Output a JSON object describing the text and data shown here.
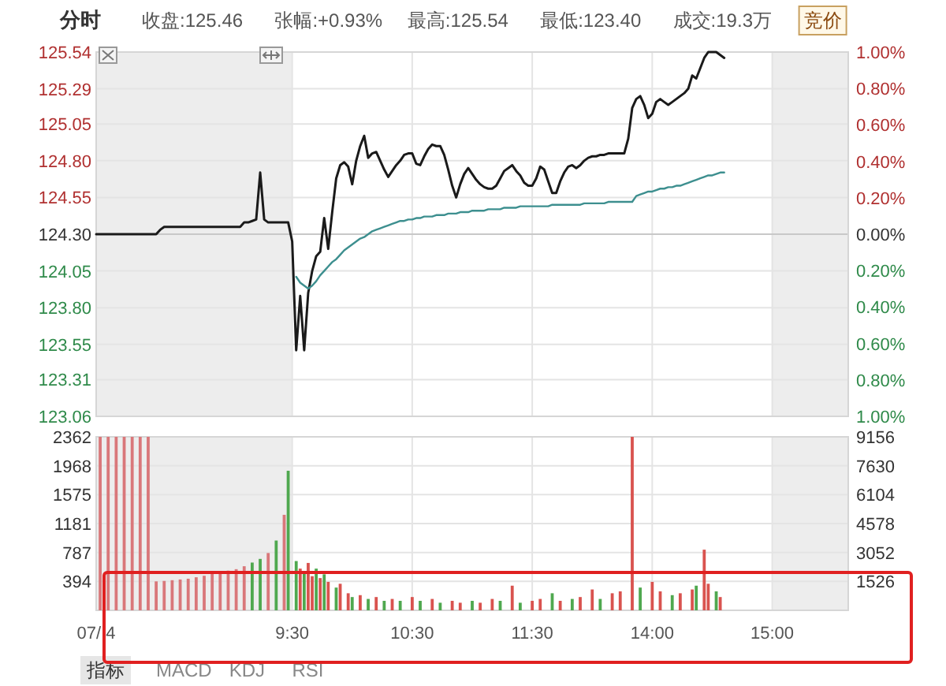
{
  "chart_data": [
    {
      "type": "line",
      "title": "分时",
      "annotations": [
        "收盘:125.46",
        "张幅:+0.93%",
        "最高:125.54",
        "最低:123.40",
        "成交:19.3万",
        "竞价"
      ],
      "categories": [
        "07/ 4",
        null,
        null,
        null,
        null,
        null,
        null,
        null,
        null,
        null,
        null,
        null,
        null,
        null,
        null,
        null,
        null,
        null,
        null,
        null,
        null,
        null,
        null,
        null,
        null,
        null,
        null,
        null,
        null,
        null,
        null,
        null,
        null,
        null,
        null,
        null,
        null,
        null,
        null,
        null,
        null,
        null,
        null,
        null,
        null,
        null,
        null,
        null,
        null,
        "9:30",
        null,
        null,
        null,
        null,
        null,
        null,
        null,
        null,
        null,
        null,
        null,
        null,
        null,
        null,
        null,
        null,
        null,
        null,
        null,
        null,
        null,
        null,
        null,
        null,
        null,
        null,
        null,
        null,
        null,
        "10:30",
        null,
        null,
        null,
        null,
        null,
        null,
        null,
        null,
        null,
        null,
        null,
        null,
        null,
        null,
        null,
        null,
        null,
        null,
        null,
        null,
        null,
        null,
        null,
        null,
        null,
        null,
        null,
        null,
        null,
        "11:30",
        null,
        null,
        null,
        null,
        null,
        null,
        null,
        null,
        null,
        null,
        null,
        null,
        null,
        null,
        null,
        null,
        null,
        null,
        null,
        null,
        null,
        null,
        null,
        null,
        null,
        null,
        null,
        null,
        null,
        "14:00",
        null,
        null,
        null,
        null,
        null,
        null,
        null,
        null,
        null,
        null,
        null,
        null,
        null,
        null,
        null,
        null,
        null,
        null,
        null,
        null,
        null,
        null,
        null,
        null,
        null,
        null,
        null,
        null,
        null,
        "15:00",
        null,
        null,
        null,
        null,
        null,
        null,
        null,
        null,
        null,
        null,
        null,
        null,
        null,
        null,
        null,
        null,
        null,
        null,
        null
      ],
      "ylim": [
        123.06,
        125.54
      ],
      "yticks": [
        123.06,
        123.31,
        123.55,
        {
          "value": 123.8,
          "label": "123.80"
        },
        124.05,
        {
          "value": 124.3,
          "label": "124.30"
        },
        124.55,
        {
          "value": 124.8,
          "label": "124.80"
        },
        125.05,
        125.29,
        125.54
      ],
      "y2lim": [
        -1,
        1
      ],
      "y2ticks": [
        {
          "value": -1,
          "label": "1.00%"
        },
        {
          "value": -0.8,
          "label": "0.80%"
        },
        {
          "value": -0.6,
          "label": "0.60%"
        },
        {
          "value": -0.4,
          "label": "0.40%"
        },
        {
          "value": -0.2,
          "label": "0.20%"
        },
        {
          "value": 0,
          "label": "0.00%"
        },
        {
          "value": 0.2,
          "label": "0.20%"
        },
        {
          "value": 0.4,
          "label": "0.40%"
        },
        {
          "value": 0.6,
          "label": "0.60%"
        },
        {
          "value": 0.8,
          "label": "0.80%"
        },
        {
          "value": 1,
          "label": "1.00%"
        }
      ],
      "tick_labels": "y",
      "grid": true,
      "bands": [
        {
          "axis": "x",
          "from": "07/ 4",
          "to": "9:30",
          "color": "#ededed"
        }
      ],
      "ref_lines": [
        {
          "axis": "y",
          "value": 124.3,
          "color": "#c8c8c8"
        }
      ],
      "series": [
        {
          "color": "#1a1a1a",
          "values": [
            124.3,
            124.3,
            124.3,
            124.3,
            124.3,
            124.3,
            124.3,
            124.3,
            124.3,
            124.3,
            124.3,
            124.3,
            124.3,
            124.3,
            124.3,
            124.3,
            124.33,
            124.35,
            124.35,
            124.35,
            124.35,
            124.35,
            124.35,
            124.35,
            124.35,
            124.35,
            124.35,
            124.35,
            124.35,
            124.35,
            124.35,
            124.35,
            124.35,
            124.35,
            124.35,
            124.35,
            124.35,
            124.38,
            124.38,
            124.39,
            124.4,
            124.72,
            124.4,
            124.38,
            124.38,
            124.38,
            124.38,
            124.38,
            124.38,
            124.25,
            123.51,
            123.88,
            123.51,
            123.9,
            124.05,
            124.15,
            124.18,
            124.41,
            124.2,
            124.45,
            124.68,
            124.77,
            124.79,
            124.76,
            124.64,
            124.8,
            124.9,
            124.97,
            124.82,
            124.85,
            124.86,
            124.8,
            124.74,
            124.69,
            124.73,
            124.77,
            124.8,
            124.84,
            124.85,
            124.85,
            124.78,
            124.77,
            124.83,
            124.88,
            124.91,
            124.9,
            124.9,
            124.84,
            124.74,
            124.63,
            124.55,
            124.64,
            124.71,
            124.75,
            124.71,
            124.67,
            124.64,
            124.62,
            124.61,
            124.61,
            124.63,
            124.68,
            124.73,
            124.75,
            124.77,
            124.73,
            124.7,
            124.65,
            124.63,
            124.63,
            124.68,
            124.76,
            124.74,
            124.66,
            124.58,
            124.58,
            124.66,
            124.72,
            124.76,
            124.77,
            124.75,
            124.77,
            124.8,
            124.82,
            124.83,
            124.83,
            124.84,
            124.84,
            124.85,
            124.85,
            124.85,
            124.85,
            124.85,
            124.95,
            125.16,
            125.22,
            125.24,
            125.18,
            125.09,
            125.12,
            125.2,
            125.22,
            125.2,
            125.18,
            125.2,
            125.22,
            125.24,
            125.26,
            125.29,
            125.38,
            125.36,
            125.43,
            125.5,
            125.54,
            125.54,
            125.54,
            125.52,
            125.5,
            null,
            null,
            null,
            null,
            null,
            null,
            null,
            null,
            null,
            null,
            null,
            null,
            null,
            null,
            null,
            null,
            null,
            null,
            null,
            null,
            null,
            null,
            null,
            null,
            null,
            null,
            null,
            null,
            null,
            null,
            null
          ]
        },
        {
          "color": "#3d8f8f",
          "values": [
            null,
            null,
            null,
            null,
            null,
            null,
            null,
            null,
            null,
            null,
            null,
            null,
            null,
            null,
            null,
            null,
            null,
            null,
            null,
            null,
            null,
            null,
            null,
            null,
            null,
            null,
            null,
            null,
            null,
            null,
            null,
            null,
            null,
            null,
            null,
            null,
            null,
            null,
            null,
            null,
            null,
            null,
            null,
            null,
            null,
            null,
            null,
            null,
            null,
            null,
            124.01,
            123.97,
            123.95,
            123.93,
            123.95,
            123.98,
            124.02,
            124.05,
            124.08,
            124.11,
            124.13,
            124.16,
            124.19,
            124.21,
            124.23,
            124.25,
            124.27,
            124.28,
            124.3,
            124.32,
            124.33,
            124.34,
            124.35,
            124.36,
            124.37,
            124.38,
            124.39,
            124.39,
            124.4,
            124.4,
            124.41,
            124.41,
            124.42,
            124.42,
            124.42,
            124.43,
            124.43,
            124.43,
            124.44,
            124.44,
            124.44,
            124.45,
            124.45,
            124.45,
            124.46,
            124.46,
            124.46,
            124.46,
            124.47,
            124.47,
            124.47,
            124.47,
            124.48,
            124.48,
            124.48,
            124.48,
            124.49,
            124.49,
            124.49,
            124.49,
            124.49,
            124.49,
            124.49,
            124.49,
            124.5,
            124.5,
            124.5,
            124.5,
            124.5,
            124.5,
            124.5,
            124.5,
            124.51,
            124.51,
            124.51,
            124.51,
            124.51,
            124.51,
            124.52,
            124.52,
            124.52,
            124.52,
            124.52,
            124.52,
            124.52,
            124.56,
            124.57,
            124.58,
            124.59,
            124.59,
            124.6,
            124.61,
            124.61,
            124.62,
            124.62,
            124.63,
            124.63,
            124.64,
            124.65,
            124.66,
            124.67,
            124.68,
            124.69,
            124.7,
            124.7,
            124.71,
            124.72,
            124.72,
            null,
            null,
            null,
            null,
            null,
            null,
            null,
            null,
            null,
            null,
            null,
            null,
            null,
            null,
            null,
            null,
            null,
            null,
            null,
            null,
            null,
            null,
            null,
            null,
            null,
            null,
            null,
            null,
            null,
            null,
            null
          ]
        }
      ]
    },
    {
      "type": "bar",
      "annotations": [
        "指标",
        "MACD",
        "KDJ",
        "RSI"
      ],
      "categories": [
        "07/ 4",
        null,
        null,
        null,
        null,
        null,
        null,
        null,
        null,
        null,
        null,
        null,
        null,
        null,
        null,
        null,
        null,
        null,
        null,
        null,
        null,
        null,
        null,
        null,
        null,
        null,
        null,
        null,
        null,
        null,
        null,
        null,
        null,
        null,
        null,
        null,
        null,
        null,
        null,
        null,
        null,
        null,
        null,
        null,
        null,
        null,
        null,
        null,
        null,
        "9:30",
        null,
        null,
        null,
        null,
        null,
        null,
        null,
        null,
        null,
        null,
        null,
        null,
        null,
        null,
        null,
        null,
        null,
        null,
        null,
        null,
        null,
        null,
        null,
        null,
        null,
        null,
        null,
        null,
        null,
        "10:30",
        null,
        null,
        null,
        null,
        null,
        null,
        null,
        null,
        null,
        null,
        null,
        null,
        null,
        null,
        null,
        null,
        null,
        null,
        null,
        null,
        null,
        null,
        null,
        null,
        null,
        null,
        null,
        null,
        null,
        "11:30",
        null,
        null,
        null,
        null,
        null,
        null,
        null,
        null,
        null,
        null,
        null,
        null,
        null,
        null,
        null,
        null,
        null,
        null,
        null,
        null,
        null,
        null,
        null,
        null,
        null,
        null,
        null,
        null,
        null,
        "14:00",
        null,
        null,
        null,
        null,
        null,
        null,
        null,
        null,
        null,
        null,
        null,
        null,
        null,
        null,
        null,
        null,
        null,
        null,
        null,
        null,
        null,
        null,
        null,
        null,
        null,
        null,
        null,
        null,
        null,
        "15:00",
        null,
        null,
        null,
        null,
        null,
        null,
        null,
        null,
        null,
        null,
        null,
        null,
        null,
        null,
        null,
        null,
        null,
        null,
        null
      ],
      "ylim": [
        0,
        2362
      ],
      "yticks": [
        394,
        787,
        1181,
        1575,
        1968,
        2362
      ],
      "y2lim": [
        0,
        9156
      ],
      "y2ticks": [
        1526,
        3052,
        4578,
        6104,
        7630,
        9156
      ],
      "grid": true,
      "bands": [
        {
          "axis": "x",
          "from": "07/ 4",
          "to": "9:30",
          "color": "#ededed"
        }
      ],
      "series": [
        {
          "axis": "y",
          "color": "#d9777a",
          "values": [
            null,
            2362,
            null,
            2362,
            null,
            2362,
            null,
            2362,
            null,
            2362,
            null,
            2362,
            null,
            2362,
            null,
            394,
            null,
            400,
            null,
            410,
            null,
            420,
            null,
            430,
            null,
            450,
            null,
            470,
            null,
            500,
            null,
            520,
            null,
            540,
            null,
            560,
            null,
            600,
            null,
            null,
            null,
            null,
            null,
            780,
            null,
            null,
            null,
            1300,
            null,
            null,
            null,
            null,
            null,
            null,
            null,
            null,
            null,
            null,
            null,
            null,
            null,
            null,
            null,
            null,
            null,
            null,
            null,
            null,
            null,
            null,
            null,
            null,
            null,
            null,
            null,
            null,
            null,
            null,
            null,
            null,
            null,
            null,
            null,
            null,
            null,
            null,
            null,
            null,
            null,
            null,
            null,
            null,
            null,
            null,
            null,
            null,
            null,
            null,
            null,
            null,
            null,
            null,
            null,
            null,
            null,
            null,
            null,
            null,
            null,
            null,
            null,
            null,
            null,
            null,
            null,
            null,
            null,
            null,
            null,
            null,
            null,
            null,
            null,
            null,
            null,
            null,
            null,
            null,
            null,
            null,
            null,
            null,
            null,
            null,
            null,
            null,
            null,
            null,
            null,
            null,
            null,
            null,
            null,
            null,
            null,
            null,
            null,
            null,
            null,
            null,
            null,
            null,
            null,
            null,
            null,
            null,
            null,
            null,
            null,
            null,
            null,
            null,
            null,
            null,
            null,
            null,
            null,
            null,
            null,
            null,
            null,
            null,
            null,
            null,
            null,
            null,
            null,
            null,
            null,
            null,
            null,
            null,
            null,
            null,
            null,
            null,
            null,
            null,
            null
          ]
        },
        {
          "axis": "y",
          "color": "#4fa84f",
          "values": [
            null,
            null,
            null,
            null,
            null,
            null,
            null,
            null,
            null,
            null,
            null,
            null,
            null,
            null,
            null,
            null,
            null,
            null,
            null,
            null,
            null,
            null,
            null,
            null,
            null,
            null,
            null,
            null,
            null,
            null,
            null,
            null,
            null,
            null,
            null,
            null,
            null,
            null,
            null,
            650,
            null,
            700,
            null,
            null,
            null,
            950,
            null,
            null,
            1900,
            null,
            null,
            null,
            null,
            null,
            null,
            null,
            null,
            null,
            null,
            null,
            null,
            null,
            null,
            null,
            null,
            null,
            null,
            null,
            null,
            null,
            null,
            null,
            null,
            null,
            null,
            null,
            null,
            null,
            null,
            null,
            null,
            null,
            null,
            null,
            null,
            null,
            null,
            null,
            null,
            null,
            null,
            null,
            null,
            null,
            null,
            null,
            null,
            null,
            null,
            null,
            null,
            null,
            null,
            null,
            null,
            null,
            null,
            null,
            null,
            null,
            null,
            null,
            null,
            null,
            null,
            null,
            null,
            null,
            null,
            null,
            null,
            null,
            null,
            null,
            null,
            null,
            null,
            null,
            null,
            null,
            null,
            null,
            null,
            null,
            null,
            null,
            null,
            null,
            null,
            null,
            null,
            null,
            null,
            null,
            null,
            null,
            null,
            null,
            null,
            null,
            null,
            null,
            null,
            null,
            null,
            null,
            null,
            null,
            null,
            null,
            null,
            null,
            null,
            null,
            null,
            null,
            null,
            null,
            null,
            null,
            null,
            null,
            null,
            null,
            null,
            null,
            null,
            null,
            null,
            null,
            null,
            null,
            null,
            null,
            null,
            null,
            null,
            null,
            null
          ]
        },
        {
          "axis": "y2",
          "color": "#d9534f",
          "values": [
            null,
            null,
            null,
            null,
            null,
            null,
            null,
            null,
            null,
            null,
            null,
            null,
            null,
            null,
            null,
            null,
            null,
            null,
            null,
            null,
            null,
            null,
            null,
            null,
            null,
            null,
            null,
            null,
            null,
            null,
            null,
            null,
            null,
            null,
            null,
            null,
            null,
            null,
            null,
            null,
            null,
            null,
            null,
            null,
            null,
            null,
            null,
            null,
            null,
            null,
            null,
            2200,
            null,
            2500,
            1800,
            null,
            1700,
            null,
            1500,
            null,
            null,
            1400,
            null,
            900,
            null,
            null,
            800,
            null,
            null,
            null,
            700,
            null,
            null,
            null,
            600,
            null,
            null,
            null,
            null,
            700,
            null,
            null,
            null,
            null,
            600,
            null,
            null,
            null,
            null,
            500,
            null,
            400,
            null,
            null,
            null,
            null,
            400,
            null,
            null,
            600,
            null,
            null,
            null,
            null,
            1300,
            null,
            null,
            null,
            null,
            500,
            null,
            600,
            null,
            null,
            null,
            null,
            500,
            null,
            null,
            null,
            null,
            700,
            null,
            null,
            1100,
            null,
            null,
            null,
            null,
            900,
            null,
            1000,
            null,
            null,
            9156,
            null,
            null,
            null,
            null,
            1500,
            null,
            1000,
            null,
            null,
            null,
            null,
            900,
            null,
            null,
            1100,
            null,
            null,
            3200,
            1400,
            null,
            null,
            700,
            null,
            null,
            null,
            null,
            null,
            null,
            null,
            null,
            null,
            null,
            null,
            null,
            null,
            null,
            null,
            null,
            null,
            null,
            null,
            null,
            null,
            null,
            null,
            null,
            null,
            null,
            null,
            null,
            null,
            null,
            null,
            null
          ]
        },
        {
          "axis": "y2",
          "color": "#4fa84f",
          "values": [
            null,
            null,
            null,
            null,
            null,
            null,
            null,
            null,
            null,
            null,
            null,
            null,
            null,
            null,
            null,
            null,
            null,
            null,
            null,
            null,
            null,
            null,
            null,
            null,
            null,
            null,
            null,
            null,
            null,
            null,
            null,
            null,
            null,
            null,
            null,
            null,
            null,
            null,
            null,
            null,
            null,
            null,
            null,
            null,
            null,
            null,
            null,
            null,
            null,
            null,
            2600,
            null,
            2000,
            null,
            null,
            2200,
            null,
            1900,
            null,
            null,
            1200,
            null,
            null,
            null,
            700,
            null,
            null,
            null,
            600,
            null,
            null,
            null,
            500,
            null,
            null,
            null,
            500,
            null,
            null,
            null,
            null,
            500,
            null,
            null,
            null,
            null,
            400,
            null,
            null,
            null,
            null,
            null,
            null,
            null,
            500,
            null,
            null,
            null,
            null,
            null,
            null,
            500,
            null,
            null,
            null,
            null,
            400,
            null,
            null,
            null,
            null,
            null,
            null,
            null,
            900,
            null,
            null,
            null,
            null,
            600,
            null,
            null,
            null,
            null,
            null,
            null,
            600,
            null,
            null,
            null,
            null,
            null,
            null,
            null,
            null,
            null,
            1200,
            null,
            null,
            null,
            null,
            null,
            null,
            null,
            800,
            null,
            null,
            null,
            null,
            null,
            1300,
            null,
            null,
            null,
            null,
            1000,
            null,
            null,
            null,
            null,
            null,
            null,
            null,
            null,
            null,
            null,
            null,
            null,
            null,
            null,
            null,
            null,
            null,
            null,
            null,
            null,
            null,
            null,
            null,
            null,
            null,
            null,
            null,
            null,
            null,
            null,
            null,
            null,
            null
          ]
        }
      ]
    }
  ]
}
